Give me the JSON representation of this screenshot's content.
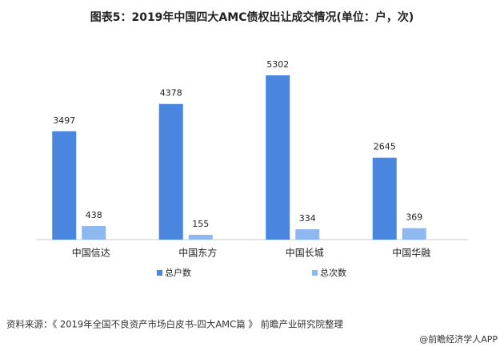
{
  "chart_data": {
    "type": "bar",
    "title": "图表5：2019年中国四大AMC债权出让成交情况(单位：户，次)",
    "categories": [
      "中国信达",
      "中国东方",
      "中国长城",
      "中国华融"
    ],
    "series": [
      {
        "name": "总户数",
        "color": "#4a86e0",
        "values": [
          3497,
          4378,
          5302,
          2645
        ]
      },
      {
        "name": "总次数",
        "color": "#8eb8f0",
        "values": [
          438,
          155,
          334,
          369
        ]
      }
    ],
    "source": "资料来源：《 2019年全国不良资产市场白皮书-四大AMC篇 》 前瞻产业研究院整理",
    "footer": "@前瞻经济学人APP"
  }
}
